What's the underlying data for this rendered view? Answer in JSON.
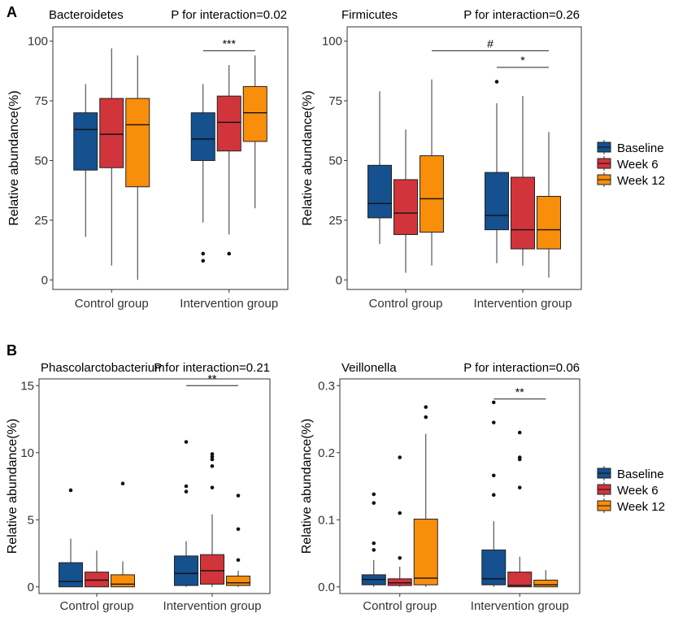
{
  "figure": {
    "legend_entries": [
      {
        "name": "Baseline",
        "color": "#15508f"
      },
      {
        "name": "Week 6",
        "color": "#d2343b"
      },
      {
        "name": "Week 12",
        "color": "#f98e0b"
      }
    ]
  },
  "chart_data": [
    {
      "type": "boxplot",
      "panel_label": "A",
      "title": "Bacteroidetes",
      "interaction": "P for interaction=0.02",
      "ylabel": "Relative abundance(%)",
      "ylim": [
        -4,
        106
      ],
      "yticks": [
        0,
        25,
        50,
        75,
        100
      ],
      "ytick_labels": [
        "0",
        "25",
        "50",
        "75",
        "100"
      ],
      "categories": [
        "Control group",
        "Intervention group"
      ],
      "series": [
        {
          "name": "Baseline",
          "boxes": [
            {
              "min": 18,
              "q1": 46,
              "median": 63,
              "q3": 70,
              "max": 82,
              "outliers": []
            },
            {
              "min": 24,
              "q1": 50,
              "median": 59,
              "q3": 70,
              "max": 82,
              "outliers": [
                8,
                11
              ]
            }
          ]
        },
        {
          "name": "Week 6",
          "boxes": [
            {
              "min": 6,
              "q1": 47,
              "median": 61,
              "q3": 76,
              "max": 97,
              "outliers": []
            },
            {
              "min": 19,
              "q1": 54,
              "median": 66,
              "q3": 77,
              "max": 90,
              "outliers": [
                11
              ]
            }
          ]
        },
        {
          "name": "Week 12",
          "boxes": [
            {
              "min": 0,
              "q1": 39,
              "median": 65,
              "q3": 76,
              "max": 94,
              "outliers": []
            },
            {
              "min": 30,
              "q1": 58,
              "median": 70,
              "q3": 81,
              "max": 94,
              "outliers": []
            }
          ]
        }
      ],
      "annotations": [
        {
          "text": "***",
          "cat": 1,
          "from": 0,
          "to": 2,
          "y": 96
        }
      ]
    },
    {
      "type": "boxplot",
      "panel_label": "",
      "title": "Firmicutes",
      "interaction": "P for interaction=0.26",
      "ylabel": "Relative abundance(%)",
      "ylim": [
        -4,
        106
      ],
      "yticks": [
        0,
        25,
        50,
        75,
        100
      ],
      "ytick_labels": [
        "0",
        "25",
        "50",
        "75",
        "100"
      ],
      "categories": [
        "Control group",
        "Intervention group"
      ],
      "series": [
        {
          "name": "Baseline",
          "boxes": [
            {
              "min": 15,
              "q1": 26,
              "median": 32,
              "q3": 48,
              "max": 79,
              "outliers": []
            },
            {
              "min": 7,
              "q1": 21,
              "median": 27,
              "q3": 45,
              "max": 74,
              "outliers": [
                83
              ]
            }
          ]
        },
        {
          "name": "Week 6",
          "boxes": [
            {
              "min": 3,
              "q1": 19,
              "median": 28,
              "q3": 42,
              "max": 63,
              "outliers": []
            },
            {
              "min": 6,
              "q1": 13,
              "median": 21,
              "q3": 43,
              "max": 77,
              "outliers": []
            }
          ]
        },
        {
          "name": "Week 12",
          "boxes": [
            {
              "min": 6,
              "q1": 20,
              "median": 34,
              "q3": 52,
              "max": 84,
              "outliers": []
            },
            {
              "min": 1,
              "q1": 13,
              "median": 21,
              "q3": 35,
              "max": 62,
              "outliers": []
            }
          ]
        }
      ],
      "annotations": [
        {
          "text": "#",
          "cat_from": 0,
          "from": 2,
          "cat_to": 1,
          "to": 2,
          "y": 96
        },
        {
          "text": "*",
          "cat": 1,
          "from": 0,
          "to": 2,
          "y": 89
        }
      ]
    },
    {
      "type": "boxplot",
      "panel_label": "B",
      "title": "Phascolarctobacterium",
      "interaction": "P for interaction=0.21",
      "ylabel": "Relative abundance(%)",
      "ylim": [
        -0.5,
        15.5
      ],
      "yticks": [
        0,
        5,
        10,
        15
      ],
      "ytick_labels": [
        "0",
        "5",
        "10",
        "15"
      ],
      "categories": [
        "Control group",
        "Intervention group"
      ],
      "series": [
        {
          "name": "Baseline",
          "boxes": [
            {
              "min": 0.0,
              "q1": 0.0,
              "median": 0.4,
              "q3": 1.8,
              "max": 3.6,
              "outliers": [
                7.2
              ]
            },
            {
              "min": 0.0,
              "q1": 0.1,
              "median": 1.0,
              "q3": 2.3,
              "max": 3.4,
              "outliers": [
                7.1,
                7.5,
                10.8
              ]
            }
          ]
        },
        {
          "name": "Week 6",
          "boxes": [
            {
              "min": 0.0,
              "q1": 0.0,
              "median": 0.5,
              "q3": 1.1,
              "max": 2.7,
              "outliers": []
            },
            {
              "min": 0.0,
              "q1": 0.2,
              "median": 1.2,
              "q3": 2.4,
              "max": 5.4,
              "outliers": [
                7.4,
                9.0,
                9.5,
                9.7,
                9.9
              ]
            }
          ]
        },
        {
          "name": "Week 12",
          "boxes": [
            {
              "min": 0.0,
              "q1": 0.0,
              "median": 0.2,
              "q3": 0.9,
              "max": 1.9,
              "outliers": [
                7.7
              ]
            },
            {
              "min": 0.0,
              "q1": 0.1,
              "median": 0.3,
              "q3": 0.8,
              "max": 1.2,
              "outliers": [
                2.0,
                4.3,
                6.8
              ]
            }
          ]
        }
      ],
      "annotations": [
        {
          "text": "**",
          "cat": 1,
          "from": 0,
          "to": 2,
          "y": 15.0
        }
      ]
    },
    {
      "type": "boxplot",
      "panel_label": "",
      "title": "Veillonella",
      "interaction": "P for interaction=0.06",
      "ylabel": "Relative abundance(%)",
      "ylim": [
        -0.01,
        0.31
      ],
      "yticks": [
        0,
        0.1,
        0.2,
        0.3
      ],
      "ytick_labels": [
        "0.0",
        "0.1",
        "0.2",
        "0.3"
      ],
      "categories": [
        "Control group",
        "Intervention group"
      ],
      "series": [
        {
          "name": "Baseline",
          "boxes": [
            {
              "min": 0.0,
              "q1": 0.003,
              "median": 0.011,
              "q3": 0.018,
              "max": 0.04,
              "outliers": [
                0.055,
                0.065,
                0.125,
                0.138
              ]
            },
            {
              "min": 0.0,
              "q1": 0.003,
              "median": 0.012,
              "q3": 0.055,
              "max": 0.098,
              "outliers": [
                0.137,
                0.166,
                0.245,
                0.275
              ]
            }
          ]
        },
        {
          "name": "Week 6",
          "boxes": [
            {
              "min": 0.0,
              "q1": 0.002,
              "median": 0.006,
              "q3": 0.012,
              "max": 0.03,
              "outliers": [
                0.043,
                0.11,
                0.193
              ]
            },
            {
              "min": 0.0,
              "q1": 0.0,
              "median": 0.002,
              "q3": 0.022,
              "max": 0.045,
              "outliers": [
                0.148,
                0.19,
                0.193,
                0.23
              ]
            }
          ]
        },
        {
          "name": "Week 12",
          "boxes": [
            {
              "min": 0.0,
              "q1": 0.003,
              "median": 0.013,
              "q3": 0.101,
              "max": 0.228,
              "outliers": [
                0.253,
                0.268
              ]
            },
            {
              "min": 0.0,
              "q1": 0.0,
              "median": 0.003,
              "q3": 0.01,
              "max": 0.025,
              "outliers": []
            }
          ]
        }
      ],
      "annotations": [
        {
          "text": "**",
          "cat": 1,
          "from": 0,
          "to": 2,
          "y": 0.28
        }
      ]
    }
  ]
}
